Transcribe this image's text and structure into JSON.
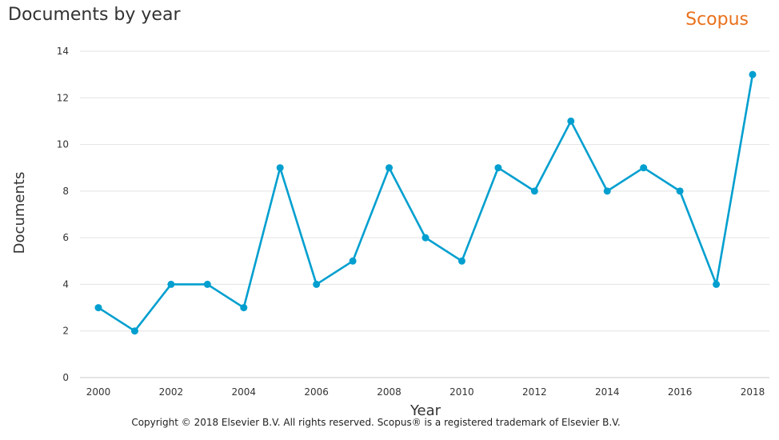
{
  "header": {
    "title": "Documents by year",
    "brand": "Scopus",
    "brand_color": "#E9711C"
  },
  "footer": {
    "copyright": "Copyright © 2018 Elsevier B.V. All rights reserved. Scopus® is a registered trademark of Elsevier B.V."
  },
  "chart_data": {
    "type": "line",
    "title": "Documents by year",
    "xlabel": "Year",
    "ylabel": "Documents",
    "x": [
      2000,
      2001,
      2002,
      2003,
      2004,
      2005,
      2006,
      2007,
      2008,
      2009,
      2010,
      2011,
      2012,
      2013,
      2014,
      2015,
      2016,
      2017,
      2018
    ],
    "values": [
      3,
      2,
      4,
      4,
      3,
      9,
      4,
      5,
      9,
      6,
      5,
      9,
      8,
      11,
      8,
      9,
      8,
      4,
      13
    ],
    "xticks": [
      2000,
      2002,
      2004,
      2006,
      2008,
      2010,
      2012,
      2014,
      2016,
      2018
    ],
    "yticks": [
      0,
      2,
      4,
      6,
      8,
      10,
      12,
      14
    ],
    "xlim": [
      2000,
      2018
    ],
    "ylim": [
      0,
      14
    ],
    "grid": true,
    "series_color": "#009FCF"
  }
}
